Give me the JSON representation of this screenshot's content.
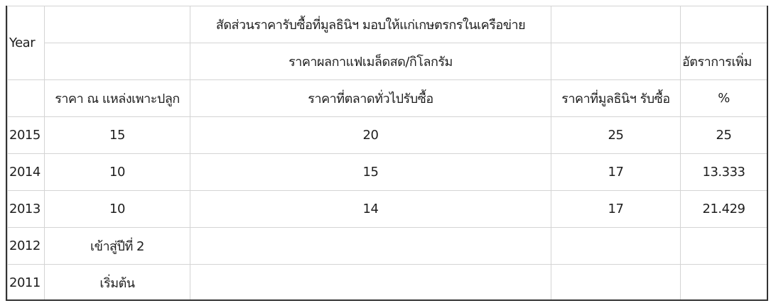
{
  "header": {
    "year_label": "Year",
    "group_title": "สัดส่วนราคารับซื้อที่มูลธินิฯ มอบให้แก่เกษตรกรในเครือข่าย",
    "price_title": "ราคาผลกาแฟเมล็ดสด/กิโลกรัม",
    "rate_title": "อัตราการเพิ่ม",
    "columns": [
      "ราคา ณ แหล่งเพาะปลูก",
      "ราคาที่ตลาดทั่วไปรับซื้อ",
      "ราคาที่มูลธินิฯ รับซื้อ",
      "%"
    ]
  },
  "rows": [
    {
      "year": "2015",
      "farm": "15",
      "market": "20",
      "foundation": "25",
      "pct": "25"
    },
    {
      "year": "2014",
      "farm": "10",
      "market": "15",
      "foundation": "17",
      "pct": "13.333"
    },
    {
      "year": "2013",
      "farm": "10",
      "market": "14",
      "foundation": "17",
      "pct": "21.429"
    },
    {
      "year": "2012",
      "farm": "เข้าสู่ปีที่ 2",
      "market": "",
      "foundation": "",
      "pct": ""
    },
    {
      "year": "2011",
      "farm": "เริ่มต้น",
      "market": "",
      "foundation": "",
      "pct": ""
    }
  ]
}
